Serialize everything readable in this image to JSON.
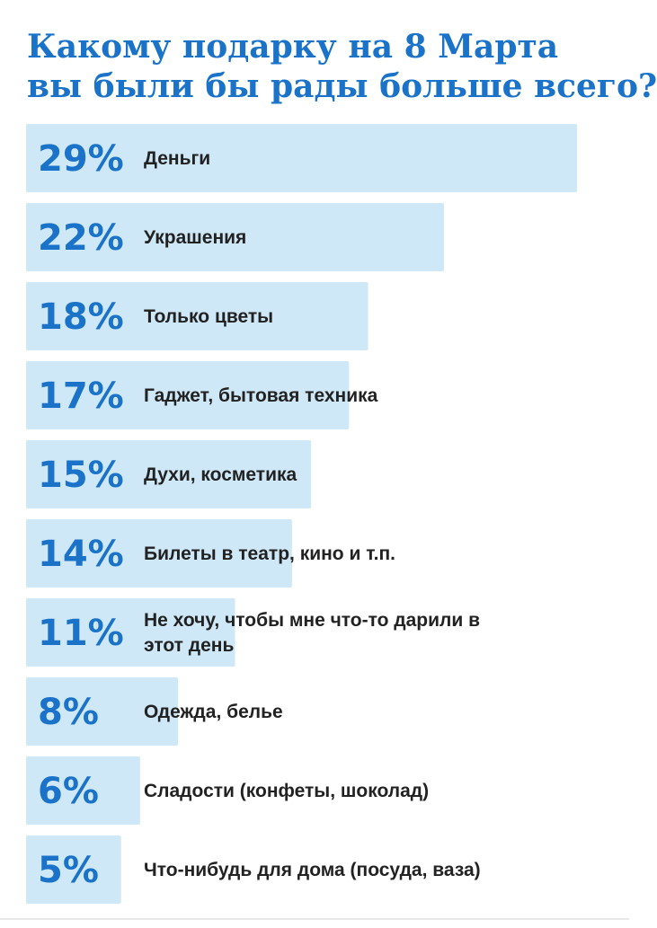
{
  "title_line1": "Какому подарку на 8 Марта",
  "title_line2": "вы были бы рады больше всего?",
  "colors": {
    "bar": "#cfe8f7",
    "percent": "#1a73c9",
    "title": "#1a73c9",
    "label": "#222222"
  },
  "chart_data": {
    "type": "bar",
    "orientation": "horizontal",
    "title": "Какому подарку на 8 Марта вы были бы рады больше всего?",
    "unit": "%",
    "categories": [
      "Деньги",
      "Украшения",
      "Только цветы",
      "Гаджет, бытовая техника",
      "Духи, косметика",
      "Билеты в театр, кино и т.п.",
      "Не хочу, чтобы мне что-то дарили в этот день",
      "Одежда, белье",
      "Сладости (конфеты, шоколад)",
      "Что-нибудь для дома (посуда, ваза)"
    ],
    "values": [
      29,
      22,
      18,
      17,
      15,
      14,
      11,
      8,
      6,
      5
    ],
    "value_labels": [
      "29%",
      "22%",
      "18%",
      "17%",
      "15%",
      "14%",
      "11%",
      "8%",
      "6%",
      "5%"
    ]
  }
}
